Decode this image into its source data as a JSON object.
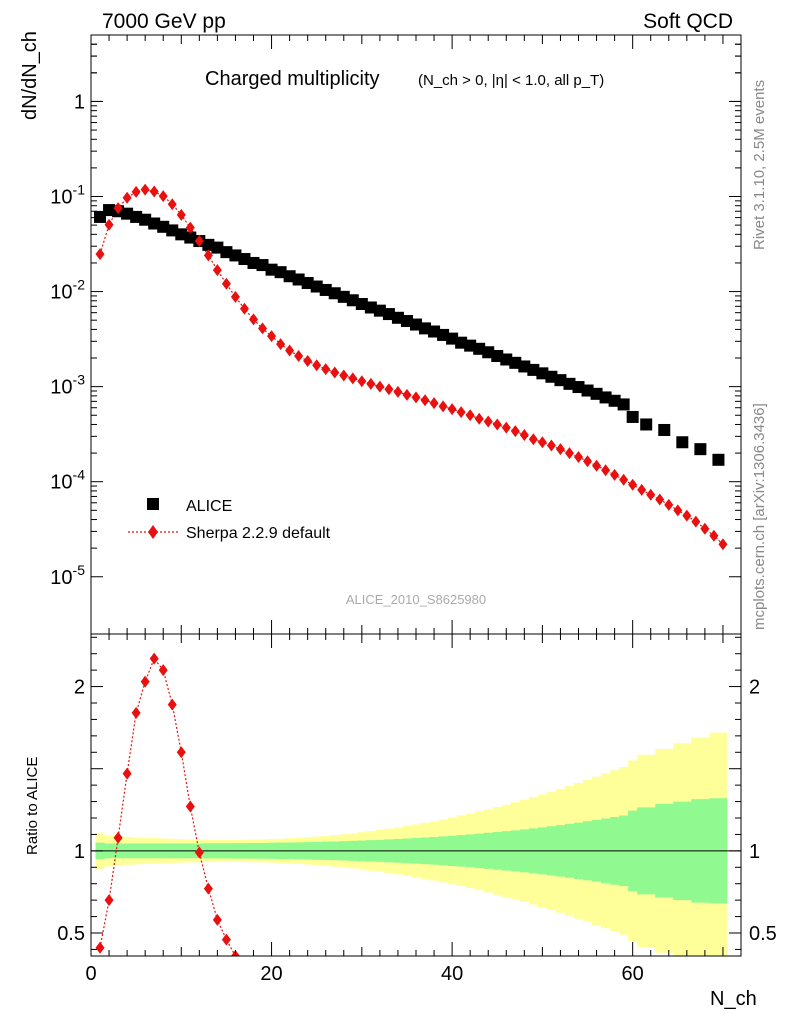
{
  "header": {
    "left": "7000 GeV pp",
    "right": "Soft QCD"
  },
  "side_text": {
    "upper": "Rivet 3.1.10,  2.5M events",
    "lower": "mcplots.cern.ch [arXiv:1306.3436]"
  },
  "watermark": "ALICE_2010_S8625980",
  "chart_data": [
    {
      "type": "scatter",
      "panel": "main",
      "title_main": "Charged multiplicity",
      "title_sub": "(N_ch > 0, |η| < 1.0, all p_T)",
      "ylabel": "dN/dN_ch",
      "yscale": "log",
      "xlim": [
        0,
        72
      ],
      "ylim": [
        2.5e-06,
        5
      ],
      "ytick_labels": [
        "10^-5",
        "10^-4",
        "10^-3",
        "10^-2",
        "10^-1",
        "1"
      ],
      "legend_position": "lower-left",
      "series": [
        {
          "name": "ALICE",
          "marker": "square",
          "color": "#000000",
          "x": [
            1,
            2,
            3,
            4,
            5,
            6,
            7,
            8,
            9,
            10,
            11,
            12,
            13,
            14,
            15,
            16,
            17,
            18,
            19,
            20,
            21,
            22,
            23,
            24,
            25,
            26,
            27,
            28,
            29,
            30,
            31,
            32,
            33,
            34,
            35,
            36,
            37,
            38,
            39,
            40,
            41,
            42,
            43,
            44,
            45,
            46,
            47,
            48,
            49,
            50,
            51,
            52,
            53,
            54,
            55,
            56,
            57,
            58,
            59,
            60,
            61.5,
            63.5,
            65.5,
            67.5,
            69.5
          ],
          "y": [
            0.061,
            0.072,
            0.07,
            0.066,
            0.061,
            0.057,
            0.052,
            0.048,
            0.044,
            0.04,
            0.037,
            0.034,
            0.031,
            0.029,
            0.026,
            0.024,
            0.022,
            0.02,
            0.019,
            0.017,
            0.016,
            0.0145,
            0.0134,
            0.0123,
            0.0113,
            0.0104,
            0.0096,
            0.0088,
            0.0081,
            0.0074,
            0.0068,
            0.0063,
            0.0058,
            0.0053,
            0.0049,
            0.0045,
            0.0041,
            0.0038,
            0.0035,
            0.0032,
            0.0029,
            0.0027,
            0.0025,
            0.0023,
            0.0021,
            0.00193,
            0.00178,
            0.00163,
            0.0015,
            0.00138,
            0.00127,
            0.00117,
            0.00107,
            0.00099,
            0.00091,
            0.00084,
            0.00077,
            0.00071,
            0.00065,
            0.00048,
            0.0004,
            0.00035,
            0.00026,
            0.00022,
            0.00017
          ]
        },
        {
          "name": "Sherpa 2.2.9 default",
          "marker": "diamond",
          "line": "dotted",
          "color": "#e8110f",
          "x": [
            1,
            2,
            3,
            4,
            5,
            6,
            7,
            8,
            9,
            10,
            11,
            12,
            13,
            14,
            15,
            16,
            17,
            18,
            19,
            20,
            21,
            22,
            23,
            24,
            25,
            26,
            27,
            28,
            29,
            30,
            31,
            32,
            33,
            34,
            35,
            36,
            37,
            38,
            39,
            40,
            41,
            42,
            43,
            44,
            45,
            46,
            47,
            48,
            49,
            50,
            51,
            52,
            53,
            54,
            55,
            56,
            57,
            58,
            59,
            60,
            61,
            62,
            63,
            64,
            65,
            66,
            67,
            68,
            69,
            70
          ],
          "y": [
            0.0248,
            0.0505,
            0.0755,
            0.097,
            0.112,
            0.118,
            0.113,
            0.101,
            0.083,
            0.064,
            0.047,
            0.034,
            0.024,
            0.0168,
            0.0121,
            0.0088,
            0.0066,
            0.0051,
            0.0041,
            0.0034,
            0.0028,
            0.0024,
            0.0021,
            0.00186,
            0.00168,
            0.00153,
            0.00141,
            0.00131,
            0.00122,
            0.00114,
            0.00107,
            0.001,
            0.00094,
            0.00088,
            0.00082,
            0.00077,
            0.00072,
            0.00067,
            0.00062,
            0.00058,
            0.00054,
            0.0005,
            0.00046,
            0.00043,
            0.0004,
            0.00037,
            0.00034,
            0.00031,
            0.00028,
            0.00026,
            0.00024,
            0.00022,
            0.0002,
            0.000182,
            0.000164,
            0.000147,
            0.000132,
            0.000118,
            0.000105,
            9.3e-05,
            8.2e-05,
            7.3e-05,
            6.5e-05,
            5.7e-05,
            5e-05,
            4.4e-05,
            3.8e-05,
            3.2e-05,
            2.7e-05,
            2.2e-05
          ]
        }
      ]
    },
    {
      "type": "line",
      "panel": "ratio",
      "ylabel": "Ratio to ALICE",
      "xlabel": "N_ch",
      "xlim": [
        0,
        72
      ],
      "ylim": [
        0.36,
        2.32
      ],
      "xtick_labels": [
        "0",
        "20",
        "40",
        "60"
      ],
      "ytick_labels": [
        "0.5",
        "1",
        "2"
      ],
      "reference_line": 1,
      "band_x": [
        0.5,
        1.5,
        2.5,
        3.5,
        4.5,
        5.5,
        6.5,
        7.5,
        8.5,
        9.5,
        10.5,
        11.5,
        12.5,
        13.5,
        14.5,
        15.5,
        16.5,
        17.5,
        18.5,
        19.5,
        20.5,
        21.5,
        22.5,
        23.5,
        24.5,
        25.5,
        26.5,
        27.5,
        28.5,
        29.5,
        30.5,
        31.5,
        32.5,
        33.5,
        34.5,
        35.5,
        36.5,
        37.5,
        38.5,
        39.5,
        40.5,
        41.5,
        42.5,
        43.5,
        44.5,
        45.5,
        46.5,
        47.5,
        48.5,
        49.5,
        50.5,
        51.5,
        52.5,
        53.5,
        54.5,
        55.5,
        56.5,
        57.5,
        58.5,
        59.5,
        60.5,
        62.5,
        64.5,
        66.5,
        68.5,
        70.5
      ],
      "bands": [
        {
          "name": "stat",
          "color": "#90fa90",
          "half_width": [
            0.05,
            0.045,
            0.045,
            0.045,
            0.045,
            0.045,
            0.045,
            0.045,
            0.045,
            0.045,
            0.045,
            0.045,
            0.046,
            0.046,
            0.046,
            0.047,
            0.047,
            0.048,
            0.048,
            0.049,
            0.05,
            0.051,
            0.052,
            0.053,
            0.054,
            0.056,
            0.057,
            0.059,
            0.061,
            0.063,
            0.065,
            0.067,
            0.07,
            0.072,
            0.075,
            0.078,
            0.081,
            0.084,
            0.088,
            0.092,
            0.096,
            0.1,
            0.105,
            0.11,
            0.115,
            0.12,
            0.125,
            0.131,
            0.137,
            0.143,
            0.15,
            0.157,
            0.164,
            0.172,
            0.18,
            0.188,
            0.197,
            0.206,
            0.215,
            0.245,
            0.265,
            0.285,
            0.3,
            0.315,
            0.32
          ]
        },
        {
          "name": "total",
          "color": "#ffff99",
          "half_width": [
            0.11,
            0.095,
            0.09,
            0.085,
            0.082,
            0.08,
            0.078,
            0.076,
            0.074,
            0.072,
            0.07,
            0.069,
            0.068,
            0.067,
            0.067,
            0.067,
            0.068,
            0.069,
            0.07,
            0.072,
            0.074,
            0.077,
            0.08,
            0.083,
            0.087,
            0.091,
            0.096,
            0.101,
            0.107,
            0.113,
            0.12,
            0.127,
            0.135,
            0.143,
            0.152,
            0.161,
            0.171,
            0.181,
            0.192,
            0.203,
            0.215,
            0.227,
            0.24,
            0.253,
            0.267,
            0.281,
            0.296,
            0.311,
            0.327,
            0.343,
            0.36,
            0.377,
            0.395,
            0.413,
            0.432,
            0.451,
            0.471,
            0.491,
            0.511,
            0.55,
            0.585,
            0.62,
            0.655,
            0.69,
            0.72
          ]
        }
      ],
      "series": [
        {
          "name": "Sherpa 2.2.9 default",
          "marker": "diamond",
          "color": "#e8110f",
          "x": [
            1,
            2,
            3,
            4,
            5,
            6,
            7,
            8,
            9,
            10,
            11,
            12,
            13,
            14,
            15,
            16
          ],
          "y": [
            0.41,
            0.7,
            1.08,
            1.47,
            1.84,
            2.03,
            2.17,
            2.1,
            1.89,
            1.6,
            1.27,
            0.99,
            0.77,
            0.58,
            0.46,
            0.36
          ]
        }
      ]
    }
  ]
}
